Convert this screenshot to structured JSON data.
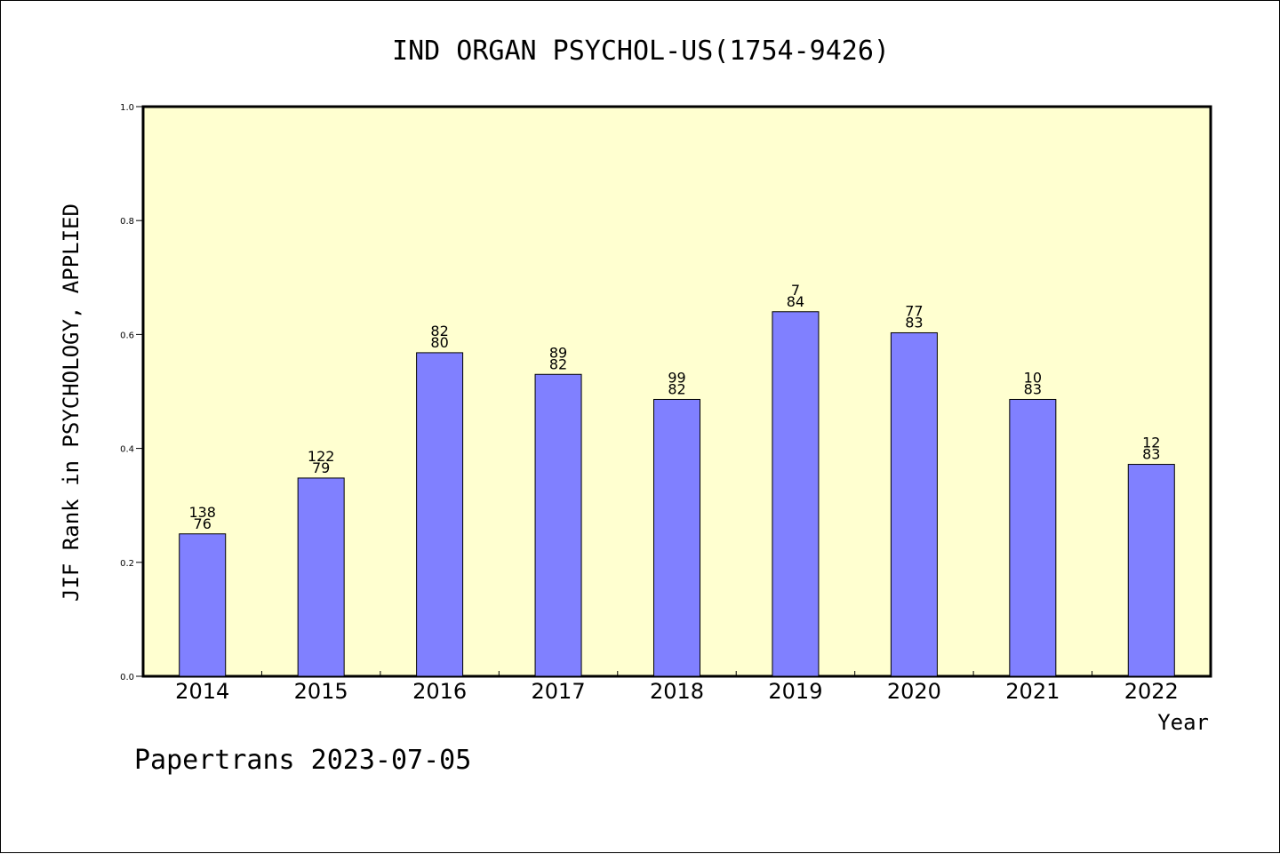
{
  "chart_data": {
    "type": "bar",
    "title": "IND ORGAN PSYCHOL-US(1754-9426)",
    "xlabel": "Year",
    "ylabel": "JIF Rank in PSYCHOLOGY, APPLIED",
    "categories": [
      "2014",
      "2015",
      "2016",
      "2017",
      "2018",
      "2019",
      "2020",
      "2021",
      "2022"
    ],
    "values": [
      0.25,
      0.348,
      0.568,
      0.53,
      0.486,
      0.64,
      0.603,
      0.486,
      0.372
    ],
    "bar_labels_top": [
      "138",
      "122",
      "82",
      "89",
      "99",
      "7",
      "77",
      "10",
      "12"
    ],
    "bar_labels_bottom": [
      "76",
      "79",
      "80",
      "82",
      "82",
      "84",
      "83",
      "83",
      "83"
    ],
    "ylim": [
      0,
      1.0
    ],
    "yticks": [
      "0.0",
      "0.2",
      "0.4",
      "0.6",
      "0.8",
      "1.0"
    ],
    "grid": false,
    "colors": {
      "plot_background": "#ffffd0",
      "bar_fill": "#8080ff",
      "bar_stroke": "#000000"
    }
  },
  "footer": {
    "text": "Papertrans 2023-07-05"
  }
}
